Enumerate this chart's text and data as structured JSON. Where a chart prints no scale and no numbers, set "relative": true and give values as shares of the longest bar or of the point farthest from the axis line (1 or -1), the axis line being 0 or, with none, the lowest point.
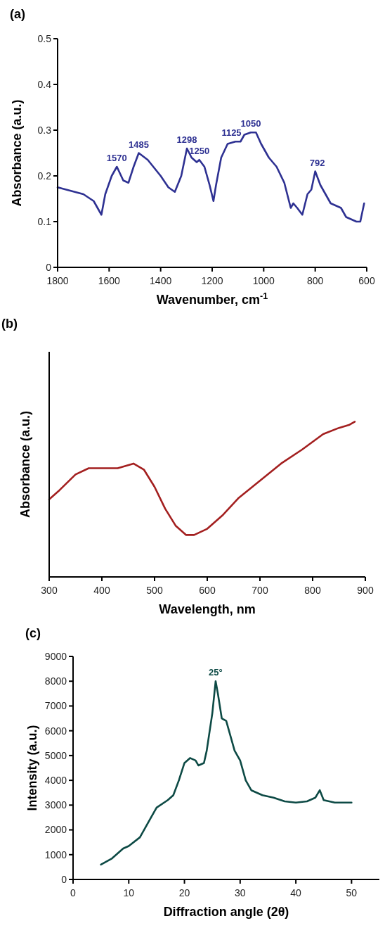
{
  "chart_data": [
    {
      "type": "line",
      "title": "(a)",
      "xlabel": "Wavenumber, cm$^{-1}$",
      "ylabel": "Absorbance (a.u.)",
      "xlim": [
        1800,
        600
      ],
      "xticks": [
        1800,
        1600,
        1400,
        1200,
        1000,
        800,
        600
      ],
      "ylim": [
        0,
        0.5
      ],
      "yticks": [
        {
          "value": 0,
          "label": "0"
        },
        0.1,
        0.2,
        0.3,
        0.4,
        0.5
      ],
      "series": [
        {
          "color": "#2e3192",
          "x": [
            1800,
            1700,
            1660,
            1630,
            1615,
            1590,
            1570,
            1545,
            1525,
            1505,
            1485,
            1450,
            1400,
            1370,
            1345,
            1320,
            1298,
            1280,
            1260,
            1250,
            1230,
            1210,
            1195,
            1185,
            1165,
            1140,
            1110,
            1090,
            1075,
            1050,
            1030,
            1010,
            980,
            950,
            920,
            895,
            885,
            870,
            850,
            830,
            815,
            800,
            780,
            760,
            740,
            720,
            700,
            680,
            660,
            640,
            625,
            610
          ],
          "values": [
            0.175,
            0.16,
            0.145,
            0.115,
            0.16,
            0.2,
            0.22,
            0.19,
            0.185,
            0.22,
            0.25,
            0.235,
            0.2,
            0.175,
            0.165,
            0.2,
            0.26,
            0.24,
            0.23,
            0.235,
            0.22,
            0.18,
            0.145,
            0.18,
            0.24,
            0.27,
            0.275,
            0.275,
            0.29,
            0.295,
            0.295,
            0.27,
            0.24,
            0.22,
            0.185,
            0.13,
            0.14,
            0.13,
            0.115,
            0.16,
            0.17,
            0.21,
            0.18,
            0.16,
            0.14,
            0.135,
            0.13,
            0.11,
            0.105,
            0.1,
            0.1,
            0.14
          ]
        }
      ],
      "annotations": [
        {
          "text": "1570",
          "x": 1570,
          "y": 0.22
        },
        {
          "text": "1485",
          "x": 1485,
          "y": 0.25
        },
        {
          "text": "1298",
          "x": 1298,
          "y": 0.26
        },
        {
          "text": "1250",
          "x": 1250,
          "y": 0.235
        },
        {
          "text": "1125",
          "x": 1125,
          "y": 0.275
        },
        {
          "text": "1050",
          "x": 1050,
          "y": 0.295
        },
        {
          "text": "792",
          "x": 792,
          "y": 0.21
        }
      ]
    },
    {
      "type": "line",
      "title": "(b)",
      "xlabel": "Wavelength, nm",
      "ylabel": "Absorbance (a.u.)",
      "relative": true,
      "xlim": [
        300,
        900
      ],
      "xticks": [
        300,
        400,
        500,
        600,
        700,
        800,
        900
      ],
      "series": [
        {
          "color": "#a31f1f",
          "x": [
            300,
            320,
            350,
            375,
            400,
            430,
            460,
            480,
            500,
            520,
            540,
            560,
            575,
            600,
            630,
            660,
            700,
            740,
            780,
            820,
            850,
            870,
            880
          ],
          "values": [
            0.5,
            0.56,
            0.66,
            0.7,
            0.7,
            0.7,
            0.73,
            0.69,
            0.58,
            0.44,
            0.33,
            0.27,
            0.27,
            0.31,
            0.4,
            0.51,
            0.62,
            0.73,
            0.82,
            0.92,
            0.96,
            0.98,
            1
          ]
        }
      ]
    },
    {
      "type": "line",
      "title": "(c)",
      "xlabel": "Diffraction angle (2θ)",
      "ylabel": "Intensity (a.u.)",
      "xlim": [
        0,
        55
      ],
      "xticks": [
        0,
        10,
        20,
        30,
        40,
        50
      ],
      "ylim": [
        0,
        9000
      ],
      "yticks": [
        0,
        1000,
        2000,
        3000,
        4000,
        5000,
        6000,
        7000,
        8000,
        9000
      ],
      "series": [
        {
          "color": "#0d4a45",
          "x": [
            5,
            7,
            9,
            10,
            12,
            14,
            15,
            17,
            18,
            19,
            20,
            21,
            22,
            22.5,
            23.5,
            24,
            25,
            25.6,
            26,
            26.7,
            27.5,
            29,
            30,
            31,
            32,
            34,
            36,
            38,
            40,
            42,
            43.5,
            44.3,
            45,
            47,
            50
          ],
          "values": [
            600,
            850,
            1250,
            1350,
            1700,
            2500,
            2900,
            3200,
            3400,
            4000,
            4700,
            4900,
            4800,
            4600,
            4700,
            5200,
            6700,
            8000,
            7500,
            6500,
            6400,
            5200,
            4800,
            4000,
            3600,
            3400,
            3300,
            3150,
            3100,
            3150,
            3300,
            3600,
            3200,
            3100,
            3100
          ]
        }
      ],
      "annotations": [
        {
          "text": "25°",
          "x": 25.6,
          "y": 8000
        }
      ]
    }
  ]
}
